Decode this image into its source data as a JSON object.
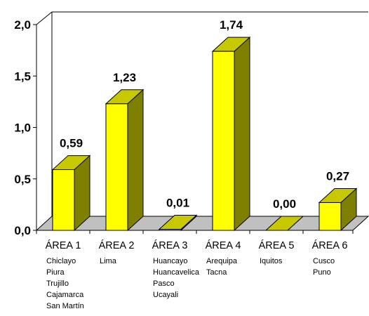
{
  "chart_data": {
    "type": "bar",
    "categories": [
      "ÁREA 1",
      "ÁREA 2",
      "ÁREA 3",
      "ÁREA 4",
      "ÁREA 5",
      "ÁREA 6"
    ],
    "sub_labels": [
      [
        "Chiclayo",
        "Piura",
        "Trujillo",
        "Cajamarca",
        "San Martín"
      ],
      [
        "Lima"
      ],
      [
        "Huancayo",
        "Huancavelica",
        "Pasco",
        "Ucayali"
      ],
      [
        "Arequipa",
        "Tacna"
      ],
      [
        "Iquitos"
      ],
      [
        "Cusco",
        "Puno"
      ]
    ],
    "values": [
      0.59,
      1.23,
      0.01,
      1.74,
      0.0,
      0.27
    ],
    "value_labels": [
      "0,59",
      "1,23",
      "0,01",
      "1,74",
      "0,00",
      "0,27"
    ],
    "y_ticks": [
      "0,0",
      "0,5",
      "1,0",
      "1,5",
      "2,0"
    ],
    "ylim": [
      0,
      2.0
    ],
    "bar_3d": true,
    "grid": false,
    "legend": "none",
    "colors": {
      "bar_front": "#ffff00",
      "bar_top": "#c8c800",
      "bar_side": "#808000",
      "floor": "#c0c0c0"
    }
  }
}
